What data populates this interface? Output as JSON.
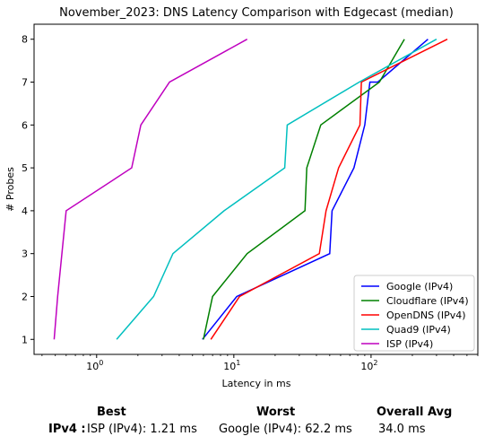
{
  "chart_data": {
    "type": "line",
    "title": "November_2023: DNS Latency Comparison with Edgecast (median)",
    "xlabel": "Latency in ms",
    "ylabel": "# Probes",
    "xscale": "log",
    "xlim": [
      0.35,
      600
    ],
    "ylim": [
      0.65,
      8.35
    ],
    "xticks": [
      1,
      10,
      100
    ],
    "xtick_labels": [
      "10",
      "10",
      "10"
    ],
    "xtick_exponents": [
      "0",
      "1",
      "2"
    ],
    "yticks": [
      1,
      2,
      3,
      4,
      5,
      6,
      7,
      8
    ],
    "ytick_labels": [
      "1",
      "2",
      "3",
      "4",
      "5",
      "6",
      "7",
      "8"
    ],
    "legend_position": "lower-right",
    "series": [
      {
        "name": "Google (IPv4)",
        "color": "#0000ff",
        "points": [
          [
            5.9,
            1
          ],
          [
            10.5,
            2
          ],
          [
            50,
            3
          ],
          [
            52,
            4
          ],
          [
            75,
            5
          ],
          [
            90,
            6
          ],
          [
            98,
            7
          ],
          [
            112,
            7
          ],
          [
            260,
            8
          ]
        ]
      },
      {
        "name": "Cloudflare (IPv4)",
        "color": "#008000",
        "points": [
          [
            6.0,
            1
          ],
          [
            7.0,
            2
          ],
          [
            12.5,
            3
          ],
          [
            33,
            4
          ],
          [
            34,
            5
          ],
          [
            43,
            6
          ],
          [
            115,
            7
          ],
          [
            175,
            8
          ]
        ]
      },
      {
        "name": "OpenDNS (IPv4)",
        "color": "#ff0000",
        "points": [
          [
            6.8,
            1
          ],
          [
            11.0,
            2
          ],
          [
            42,
            3
          ],
          [
            47,
            4
          ],
          [
            58,
            5
          ],
          [
            83,
            6
          ],
          [
            85,
            7
          ],
          [
            360,
            8
          ]
        ]
      },
      {
        "name": "Quad9 (IPv4)",
        "color": "#00bfbf",
        "points": [
          [
            1.4,
            1
          ],
          [
            2.6,
            2
          ],
          [
            3.6,
            3
          ],
          [
            8.5,
            4
          ],
          [
            23.5,
            5
          ],
          [
            24.5,
            6
          ],
          [
            82,
            7
          ],
          [
            300,
            8
          ]
        ]
      },
      {
        "name": "ISP (IPv4)",
        "color": "#bf00bf",
        "points": [
          [
            0.49,
            1
          ],
          [
            0.52,
            2
          ],
          [
            0.6,
            4
          ],
          [
            1.8,
            5
          ],
          [
            2.1,
            6
          ],
          [
            3.4,
            7
          ],
          [
            12.5,
            8
          ]
        ]
      }
    ]
  },
  "summary": {
    "best_heading": "Best",
    "worst_heading": "Worst",
    "avg_heading": "Overall Avg",
    "row_label": "IPv4 :",
    "best_value": "ISP (IPv4): 1.21 ms",
    "worst_value": "Google (IPv4): 62.2 ms",
    "avg_value": "34.0 ms"
  }
}
